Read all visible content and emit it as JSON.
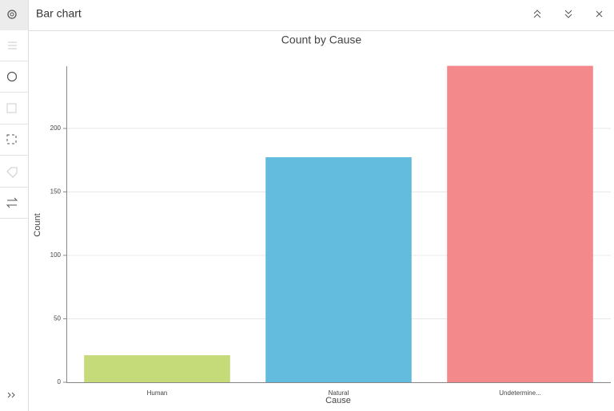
{
  "header": {
    "title": "Bar chart"
  },
  "chart_data": {
    "type": "bar",
    "title": "Count by Cause",
    "x_label": "Cause",
    "y_label": "Count",
    "categories": [
      "Human",
      "Natural",
      "Undetermine..."
    ],
    "values": [
      21,
      177,
      249
    ],
    "colors": [
      "#c2d872",
      "#5bb8db",
      "#f28385"
    ],
    "ylim": [
      0,
      249
    ],
    "yticks": [
      0,
      50,
      100,
      150,
      200
    ],
    "grid": true
  }
}
